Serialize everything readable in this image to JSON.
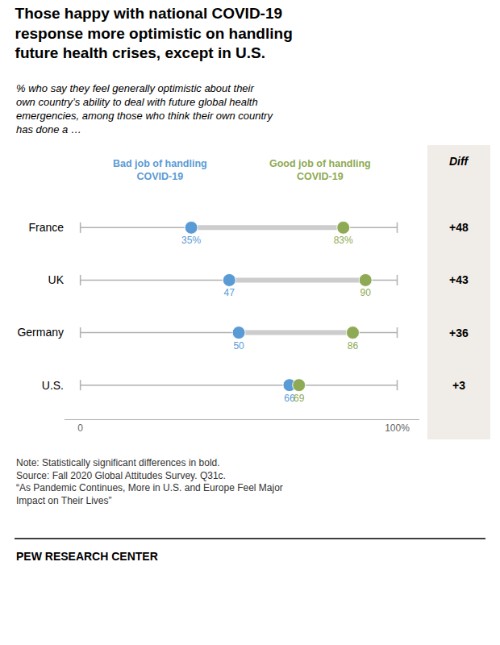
{
  "chart_data": {
    "type": "dumbbell",
    "title": "Those happy with national COVID-19\nresponse more optimistic on handling\nfuture health crises, except in U.S.",
    "subtitle": "% who say they feel generally optimistic about their\nown country’s ability to deal with future global health\nemergencies, among those who think their own country\nhas done a …",
    "categories": [
      "France",
      "UK",
      "Germany",
      "U.S."
    ],
    "series": [
      {
        "name": "Bad job of handling\nCOVID-19",
        "color": "#5b9bd5",
        "values": [
          35,
          47,
          50,
          66
        ],
        "value_labels": [
          "35%",
          "47",
          "50",
          "66"
        ]
      },
      {
        "name": "Good job of handling\nCOVID-19",
        "color": "#8faa54",
        "values": [
          83,
          90,
          86,
          69
        ],
        "value_labels": [
          "83%",
          "90",
          "86",
          "69"
        ]
      }
    ],
    "diff": {
      "title": "Diff",
      "values": [
        48,
        43,
        36,
        3
      ],
      "value_labels": [
        "+48",
        "+43",
        "+36",
        "+3"
      ]
    },
    "xlim": [
      -5,
      107
    ],
    "xticks": [
      0,
      {
        "value": 100,
        "label": "100%"
      }
    ],
    "grid": false,
    "data_labels": true,
    "notes": "Note: Statistically significant differences in bold.\nSource: Fall 2020 Global Attitudes Survey. Q31c.\n“As Pandemic Continues, More in U.S. and Europe Feel Major\nImpact on Their Lives”",
    "footer": "PEW RESEARCH CENTER"
  }
}
